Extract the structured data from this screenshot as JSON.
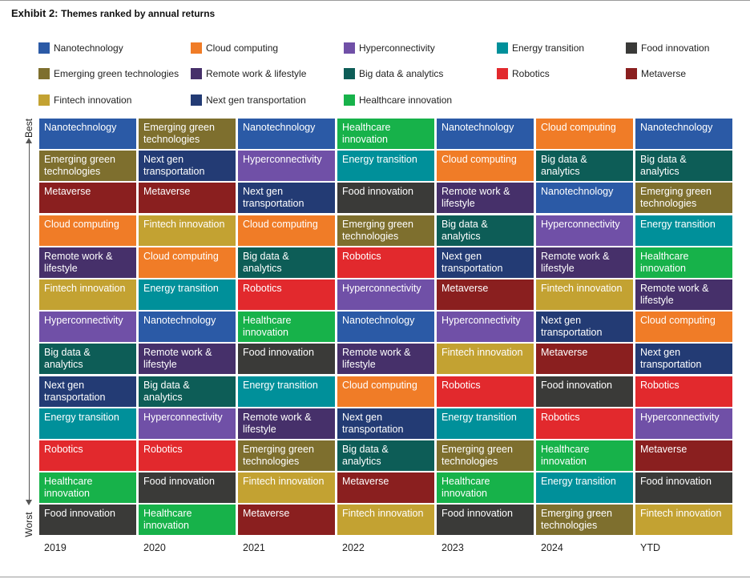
{
  "title": {
    "prefix": "Exhibit 2:",
    "text": "Themes ranked by annual returns"
  },
  "axis": {
    "best": "Best",
    "worst": "Worst"
  },
  "chart_data": {
    "type": "table",
    "themes": {
      "Nanotechnology": "#2B5AA6",
      "Cloud computing": "#F07C27",
      "Hyperconnectivity": "#7050A7",
      "Energy transition": "#00909A",
      "Food innovation": "#3A3A38",
      "Emerging green technologies": "#7E6F2E",
      "Remote work & lifestyle": "#46306A",
      "Big data & analytics": "#0D5D57",
      "Robotics": "#E2292D",
      "Metaverse": "#8A1F1F",
      "Fintech innovation": "#C3A232",
      "Next gen transportation": "#233B74",
      "Healthcare innovation": "#17B24A"
    },
    "legend_order": [
      "Nanotechnology",
      "Cloud computing",
      "Hyperconnectivity",
      "Energy transition",
      "Food innovation",
      "Emerging green technologies",
      "Remote work & lifestyle",
      "Big data & analytics",
      "Robotics",
      "Metaverse",
      "Fintech innovation",
      "Next gen transportation",
      "Healthcare innovation"
    ],
    "columns": [
      {
        "year": "2019",
        "ranking": [
          "Nanotechnology",
          "Emerging green technologies",
          "Metaverse",
          "Cloud computing",
          "Remote work & lifestyle",
          "Fintech innovation",
          "Hyperconnectivity",
          "Big data & analytics",
          "Next gen transportation",
          "Energy transition",
          "Robotics",
          "Healthcare innovation",
          "Food innovation"
        ]
      },
      {
        "year": "2020",
        "ranking": [
          "Emerging green technologies",
          "Next gen transportation",
          "Metaverse",
          "Fintech innovation",
          "Cloud computing",
          "Energy transition",
          "Nanotechnology",
          "Remote work & lifestyle",
          "Big data & analytics",
          "Hyperconnectivity",
          "Robotics",
          "Food innovation",
          "Healthcare innovation"
        ]
      },
      {
        "year": "2021",
        "ranking": [
          "Nanotechnology",
          "Hyperconnectivity",
          "Next gen transportation",
          "Cloud computing",
          "Big data & analytics",
          "Robotics",
          "Healthcare innovation",
          "Food innovation",
          "Energy transition",
          "Remote work & lifestyle",
          "Emerging green technologies",
          "Fintech innovation",
          "Metaverse"
        ]
      },
      {
        "year": "2022",
        "ranking": [
          "Healthcare innovation",
          "Energy transition",
          "Food innovation",
          "Emerging green technologies",
          "Robotics",
          "Hyperconnectivity",
          "Nanotechnology",
          "Remote work & lifestyle",
          "Cloud computing",
          "Next gen transportation",
          "Big data & analytics",
          "Metaverse",
          "Fintech innovation"
        ]
      },
      {
        "year": "2023",
        "ranking": [
          "Nanotechnology",
          "Cloud computing",
          "Remote work & lifestyle",
          "Big data & analytics",
          "Next gen transportation",
          "Metaverse",
          "Hyperconnectivity",
          "Fintech innovation",
          "Robotics",
          "Energy transition",
          "Emerging green technologies",
          "Healthcare innovation",
          "Food innovation"
        ]
      },
      {
        "year": "2024",
        "ranking": [
          "Cloud computing",
          "Big data & analytics",
          "Nanotechnology",
          "Hyperconnectivity",
          "Remote work & lifestyle",
          "Fintech innovation",
          "Next gen transportation",
          "Metaverse",
          "Food innovation",
          "Robotics",
          "Healthcare innovation",
          "Energy transition",
          "Emerging green technologies"
        ]
      },
      {
        "year": "YTD",
        "ranking": [
          "Nanotechnology",
          "Big data & analytics",
          "Emerging green technologies",
          "Energy transition",
          "Healthcare innovation",
          "Remote work & lifestyle",
          "Cloud computing",
          "Next gen transportation",
          "Robotics",
          "Hyperconnectivity",
          "Metaverse",
          "Food innovation",
          "Fintech innovation"
        ]
      }
    ]
  }
}
